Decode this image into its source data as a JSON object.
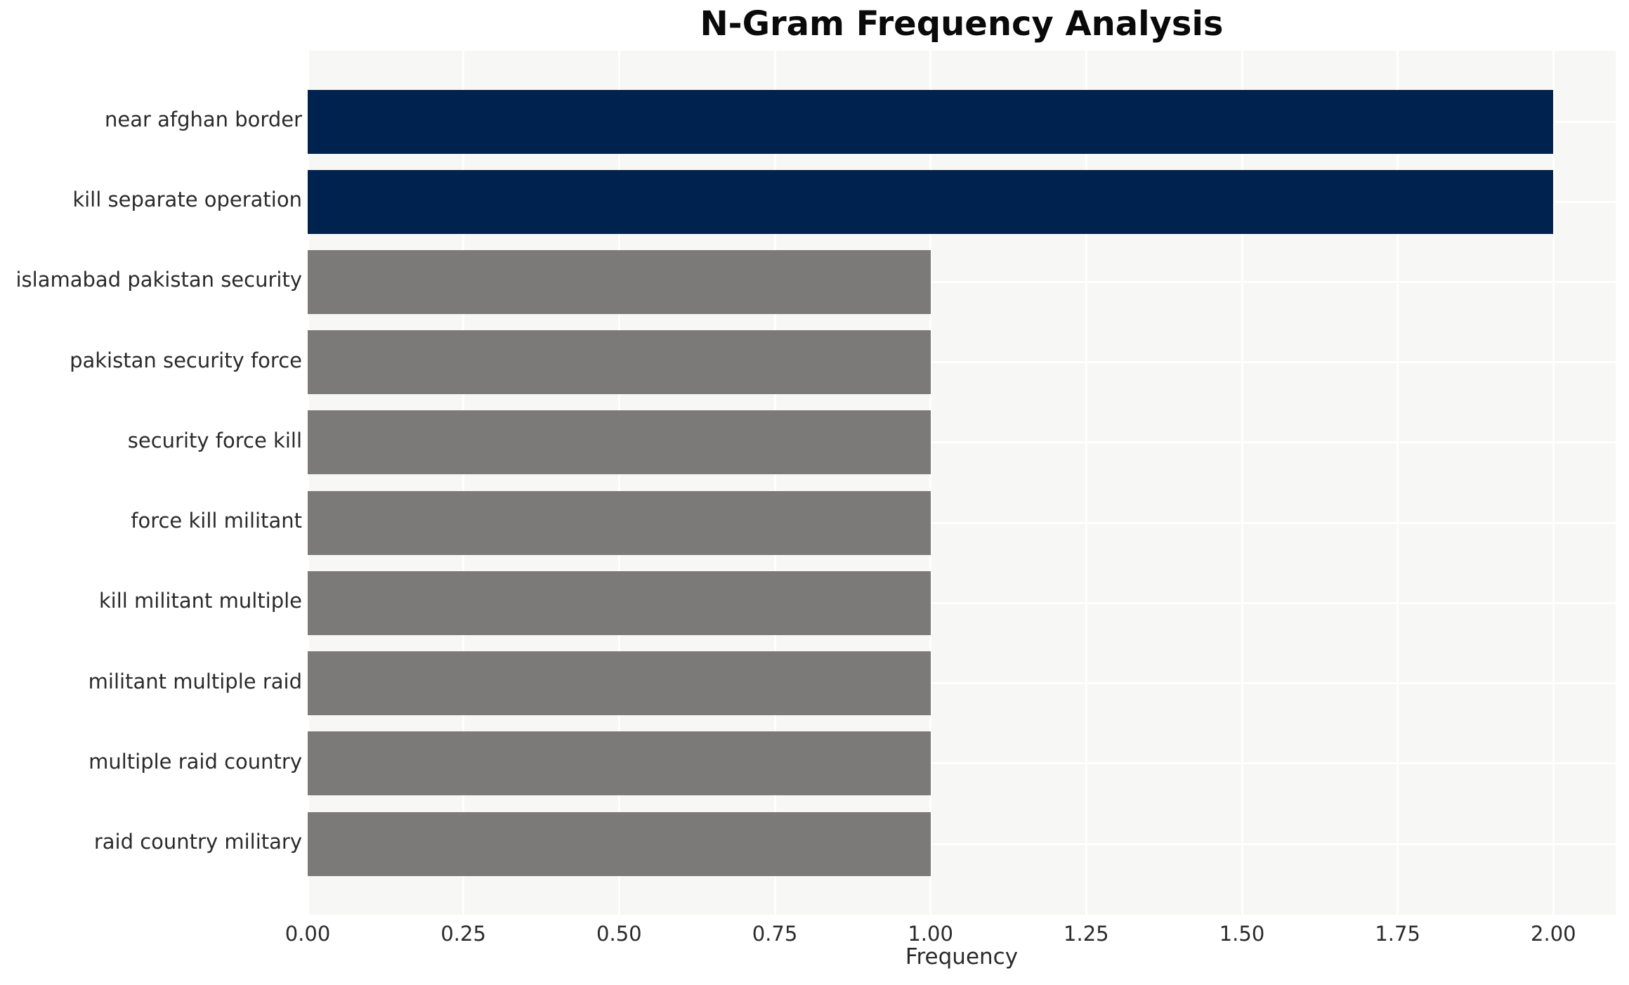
{
  "chart_data": {
    "type": "bar",
    "orientation": "horizontal",
    "title": "N-Gram Frequency Analysis",
    "xlabel": "Frequency",
    "ylabel": "",
    "categories": [
      "near afghan border",
      "kill separate operation",
      "islamabad pakistan security",
      "pakistan security force",
      "security force kill",
      "force kill militant",
      "kill militant multiple",
      "militant multiple raid",
      "multiple raid country",
      "raid country military"
    ],
    "values": [
      2,
      2,
      1,
      1,
      1,
      1,
      1,
      1,
      1,
      1
    ],
    "bar_colors": [
      "#00224e",
      "#00224e",
      "#7b7a78",
      "#7b7a78",
      "#7b7a78",
      "#7b7a78",
      "#7b7a78",
      "#7b7a78",
      "#7b7a78",
      "#7b7a78"
    ],
    "xlim": [
      0,
      2.1
    ],
    "xticks": [
      "0.00",
      "0.25",
      "0.50",
      "0.75",
      "1.00",
      "1.25",
      "1.50",
      "1.75",
      "2.00"
    ],
    "xtick_values": [
      0,
      0.25,
      0.5,
      0.75,
      1.0,
      1.25,
      1.5,
      1.75,
      2.0
    ],
    "grid": true,
    "legend": "none",
    "plot_background": "#f7f7f6",
    "gridline_color": "#ffffff",
    "highlight_color": "#00224e",
    "muted_color": "#7b7a78"
  }
}
